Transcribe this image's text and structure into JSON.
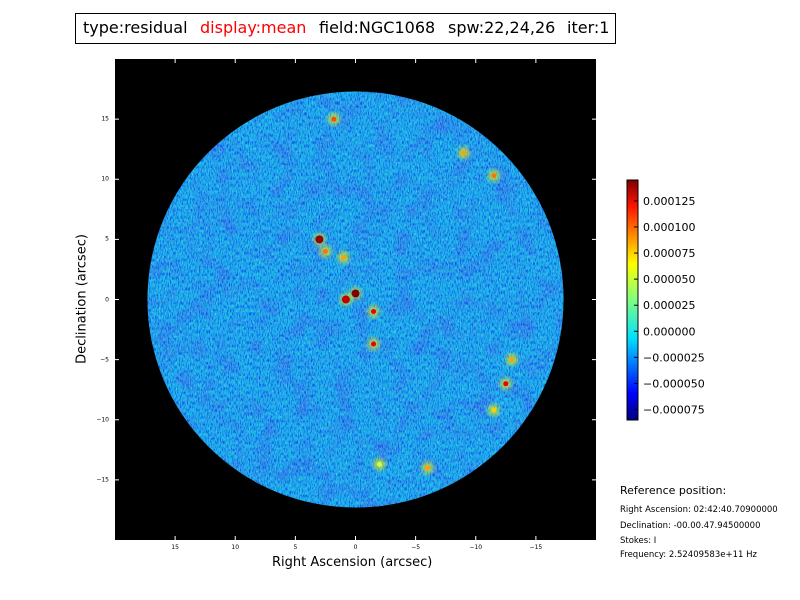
{
  "title": {
    "type_label": "type:residual",
    "display_label": "display:mean",
    "field_label": "field:NGC1068",
    "spw_label": "spw:22,24,26",
    "iter_label": "iter:1",
    "display_color": "#ff0000"
  },
  "chart_data": {
    "type": "heatmap",
    "xlabel": "Right Ascension (arcsec)",
    "ylabel": "Declination (arcsec)",
    "xlim": [
      20,
      -20
    ],
    "ylim": [
      -20,
      20
    ],
    "x_ticks": [
      15,
      10,
      5,
      0,
      -5,
      -10,
      -15
    ],
    "y_ticks": [
      15,
      10,
      5,
      0,
      -5,
      -10,
      -15
    ],
    "x_tick_labels": [
      "15",
      "10",
      "5",
      "0",
      "−5",
      "−10",
      "−15"
    ],
    "y_tick_labels": [
      "15",
      "10",
      "5",
      "0",
      "−5",
      "−10",
      "−15"
    ],
    "image_radius_arcsec": 17.3,
    "background_color": "#000000",
    "colormap": "jet",
    "colorbar": {
      "min": -8.5e-05,
      "max": 0.000145,
      "ticks": [
        0.000125,
        0.0001,
        7.5e-05,
        5e-05,
        2.5e-05,
        0.0,
        -2.5e-05,
        -5e-05,
        -7.5e-05
      ],
      "tick_labels": [
        "0.000125",
        "0.000100",
        "0.000075",
        "0.000050",
        "0.000025",
        "0.000000",
        "−0.000025",
        "−0.000050",
        "−0.000075"
      ]
    },
    "features": [
      {
        "ra": 3.0,
        "dec": 5.0,
        "value": 0.00014
      },
      {
        "ra": 2.5,
        "dec": 4.0,
        "value": 9e-05
      },
      {
        "ra": 1.0,
        "dec": 3.5,
        "value": 8e-05
      },
      {
        "ra": 0.0,
        "dec": 0.5,
        "value": 0.00015
      },
      {
        "ra": 0.8,
        "dec": 0.0,
        "value": 0.00013
      },
      {
        "ra": -1.5,
        "dec": -1.0,
        "value": 0.00012
      },
      {
        "ra": -1.5,
        "dec": -3.7,
        "value": 0.00012
      },
      {
        "ra": 1.8,
        "dec": 15.0,
        "value": 0.0001
      },
      {
        "ra": -9.0,
        "dec": 12.2,
        "value": 8e-05
      },
      {
        "ra": -11.5,
        "dec": 10.3,
        "value": 9e-05
      },
      {
        "ra": -12.5,
        "dec": -7.0,
        "value": 0.00012
      },
      {
        "ra": -13.0,
        "dec": -5.0,
        "value": 8e-05
      },
      {
        "ra": -11.5,
        "dec": -9.2,
        "value": 7e-05
      },
      {
        "ra": -6.0,
        "dec": -14.0,
        "value": 8e-05
      },
      {
        "ra": -2.0,
        "dec": -13.7,
        "value": 5e-05
      }
    ]
  },
  "reference": {
    "heading": "Reference position:",
    "ra": "Right Ascension: 02:42:40.70900000",
    "dec": "Declination: -00.00.47.94500000",
    "stokes": "Stokes: I",
    "frequency": "Frequency: 2.52409583e+11 Hz"
  }
}
